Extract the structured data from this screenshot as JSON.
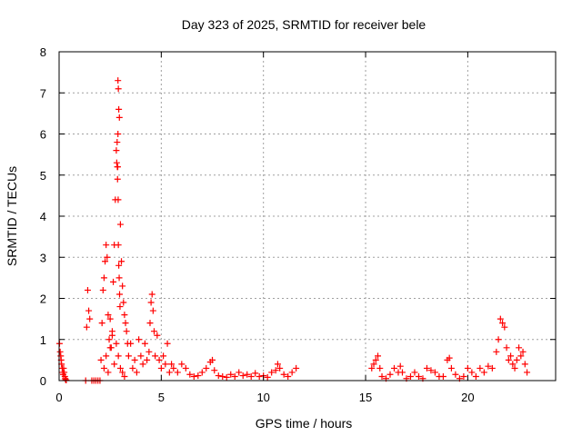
{
  "chart_data": {
    "type": "scatter",
    "title": "Day 323 of 2025, SRMTID for receiver bele",
    "xlabel": "GPS time / hours",
    "ylabel": "SRMTID / TECUs",
    "xlim": [
      0,
      24.3
    ],
    "ylim": [
      0,
      8
    ],
    "xticks": [
      0,
      5,
      10,
      15,
      20
    ],
    "yticks": [
      0,
      1,
      2,
      3,
      4,
      5,
      6,
      7,
      8
    ],
    "grid": true,
    "marker": "+",
    "color": "#ff0000",
    "series": [
      {
        "name": "SRMTID",
        "x": [
          0.02,
          0.05,
          0.08,
          0.1,
          0.12,
          0.15,
          0.18,
          0.2,
          0.22,
          0.25,
          0.28,
          0.3,
          0.32,
          0.35,
          1.3,
          1.35,
          1.4,
          1.45,
          1.5,
          1.6,
          1.7,
          1.8,
          1.9,
          2.0,
          2.05,
          2.1,
          2.15,
          2.2,
          2.25,
          2.3,
          2.35,
          2.4,
          2.45,
          2.5,
          2.55,
          2.6,
          2.65,
          2.7,
          2.75,
          2.8,
          2.85,
          2.88,
          2.9,
          2.92,
          2.95,
          3.0,
          3.05,
          3.1,
          3.15,
          3.2,
          3.25,
          3.3,
          3.35,
          3.4,
          3.5,
          3.6,
          3.7,
          3.8,
          3.9,
          2.2,
          2.3,
          2.4,
          2.5,
          2.6,
          2.7,
          2.8,
          2.9,
          3.0,
          3.1,
          3.2,
          2.82,
          2.84,
          2.86,
          2.87,
          2.88,
          2.89,
          2.9,
          2.92,
          2.94,
          2.96,
          2.98,
          4.0,
          4.1,
          4.2,
          4.3,
          4.4,
          4.45,
          4.5,
          4.55,
          4.6,
          4.65,
          4.7,
          4.8,
          4.9,
          5.0,
          5.1,
          5.2,
          5.3,
          5.4,
          5.5,
          5.6,
          5.8,
          6.0,
          6.2,
          6.4,
          6.6,
          6.8,
          7.0,
          7.2,
          7.4,
          7.5,
          7.6,
          7.8,
          8.0,
          8.2,
          8.4,
          8.6,
          8.8,
          9.0,
          9.2,
          9.4,
          9.6,
          9.8,
          10.0,
          10.2,
          10.4,
          10.6,
          10.7,
          10.8,
          11.0,
          11.2,
          11.4,
          11.6,
          15.3,
          15.4,
          15.5,
          15.6,
          15.7,
          15.8,
          16.0,
          16.2,
          16.4,
          16.6,
          16.7,
          16.8,
          17.0,
          17.2,
          17.4,
          17.6,
          17.8,
          18.0,
          18.2,
          18.4,
          18.6,
          18.8,
          19.0,
          19.1,
          19.2,
          19.4,
          19.6,
          19.8,
          20.0,
          20.2,
          20.4,
          20.6,
          20.8,
          21.0,
          21.2,
          21.4,
          21.5,
          21.6,
          21.7,
          21.8,
          21.9,
          22.0,
          22.1,
          22.2,
          22.3,
          22.4,
          22.5,
          22.6,
          22.7,
          22.8,
          22.9
        ],
        "y": [
          0.9,
          0.7,
          0.6,
          0.5,
          0.4,
          0.3,
          0.2,
          0.15,
          0.3,
          0.2,
          0.1,
          0.05,
          0.02,
          0.01,
          0,
          1.3,
          2.2,
          1.7,
          1.5,
          0,
          0,
          0,
          0,
          0,
          0.5,
          1.4,
          2.2,
          2.5,
          2.9,
          3.3,
          3.0,
          1.6,
          1.0,
          1.5,
          0.8,
          1.2,
          2.4,
          3.3,
          4.4,
          5.6,
          5.2,
          7.3,
          7.1,
          6.6,
          6.4,
          3.8,
          2.9,
          2.3,
          1.9,
          1.6,
          1.4,
          1.2,
          0.9,
          0.6,
          0.9,
          0.3,
          0.5,
          0.2,
          1.0,
          0.3,
          0.6,
          0.2,
          0.8,
          1.1,
          0.4,
          0.9,
          0.6,
          0.3,
          0.2,
          0.1,
          5.3,
          5.8,
          4.9,
          5.2,
          6.0,
          4.4,
          3.3,
          2.8,
          2.5,
          2.1,
          1.8,
          0.6,
          0.4,
          0.9,
          0.5,
          0.7,
          1.4,
          1.9,
          2.1,
          1.7,
          1.2,
          0.6,
          1.1,
          0.5,
          0.3,
          0.6,
          0.4,
          0.9,
          0.2,
          0.4,
          0.3,
          0.2,
          0.4,
          0.3,
          0.15,
          0.1,
          0.12,
          0.2,
          0.3,
          0.45,
          0.5,
          0.25,
          0.12,
          0.1,
          0.08,
          0.15,
          0.1,
          0.2,
          0.12,
          0.15,
          0.1,
          0.18,
          0.1,
          0.12,
          0.08,
          0.2,
          0.25,
          0.4,
          0.3,
          0.15,
          0.1,
          0.2,
          0.3,
          0.3,
          0.4,
          0.5,
          0.6,
          0.3,
          0.1,
          0.05,
          0.15,
          0.3,
          0.2,
          0.35,
          0.2,
          0.05,
          0.1,
          0.2,
          0.1,
          0.05,
          0.3,
          0.25,
          0.2,
          0.1,
          0.1,
          0.5,
          0.55,
          0.3,
          0.15,
          0.05,
          0.1,
          0.3,
          0.2,
          0.1,
          0.3,
          0.2,
          0.35,
          0.3,
          0.7,
          1.0,
          1.5,
          1.4,
          1.3,
          0.8,
          0.5,
          0.6,
          0.4,
          0.3,
          0.5,
          0.8,
          0.6,
          0.7,
          0.4,
          0.2
        ]
      }
    ]
  }
}
